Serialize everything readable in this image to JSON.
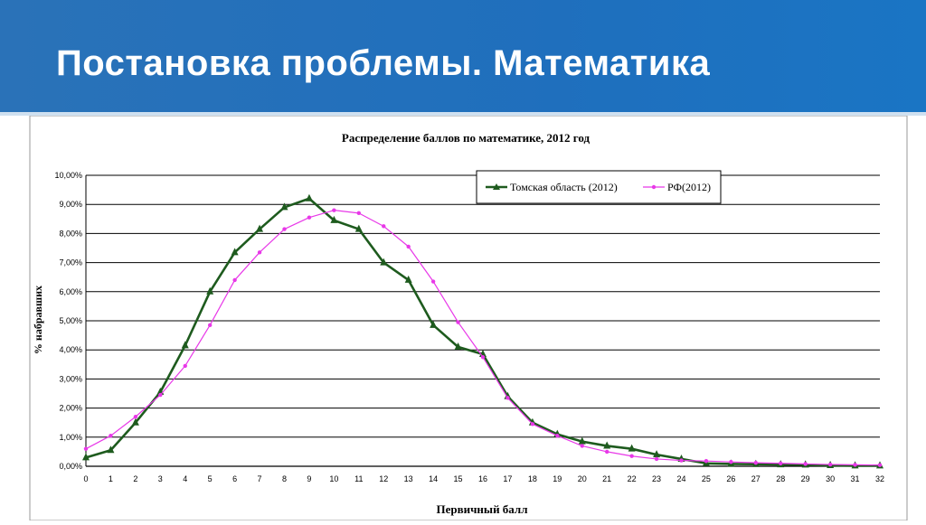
{
  "slide": {
    "title": "Постановка проблемы. Математика"
  },
  "chart_data": {
    "type": "line",
    "title": "Распределение баллов по математике, 2012 год",
    "xlabel": "Первичный балл",
    "ylabel": "% набравших",
    "x": [
      0,
      1,
      2,
      3,
      4,
      5,
      6,
      7,
      8,
      9,
      10,
      11,
      12,
      13,
      14,
      15,
      16,
      17,
      18,
      19,
      20,
      21,
      22,
      23,
      24,
      25,
      26,
      27,
      28,
      29,
      30,
      31,
      32
    ],
    "y_ticks": [
      "0,00%",
      "1,00%",
      "2,00%",
      "3,00%",
      "4,00%",
      "5,00%",
      "6,00%",
      "7,00%",
      "8,00%",
      "9,00%",
      "10,00%"
    ],
    "ylim": [
      0,
      10
    ],
    "grid": true,
    "legend_position": "top-right",
    "series": [
      {
        "name": "Томская область (2012)",
        "color": "#1e5b1e",
        "marker": "triangle",
        "values": [
          0.3,
          0.55,
          1.5,
          2.55,
          4.15,
          6.0,
          7.35,
          8.15,
          8.9,
          9.2,
          8.45,
          8.15,
          7.0,
          6.4,
          4.85,
          4.1,
          3.85,
          2.4,
          1.5,
          1.1,
          0.85,
          0.7,
          0.6,
          0.4,
          0.25,
          0.1,
          0.08,
          0.07,
          0.06,
          0.05,
          0.03,
          0.02,
          0.02
        ]
      },
      {
        "name": "РФ(2012)",
        "color": "#e838e8",
        "marker": "dot",
        "values": [
          0.6,
          1.05,
          1.7,
          2.45,
          3.45,
          4.85,
          6.4,
          7.35,
          8.15,
          8.55,
          8.8,
          8.7,
          8.25,
          7.55,
          6.35,
          4.95,
          3.75,
          2.35,
          1.45,
          1.05,
          0.7,
          0.5,
          0.35,
          0.25,
          0.2,
          0.18,
          0.15,
          0.12,
          0.1,
          0.08,
          0.06,
          0.05,
          0.04
        ]
      }
    ]
  }
}
